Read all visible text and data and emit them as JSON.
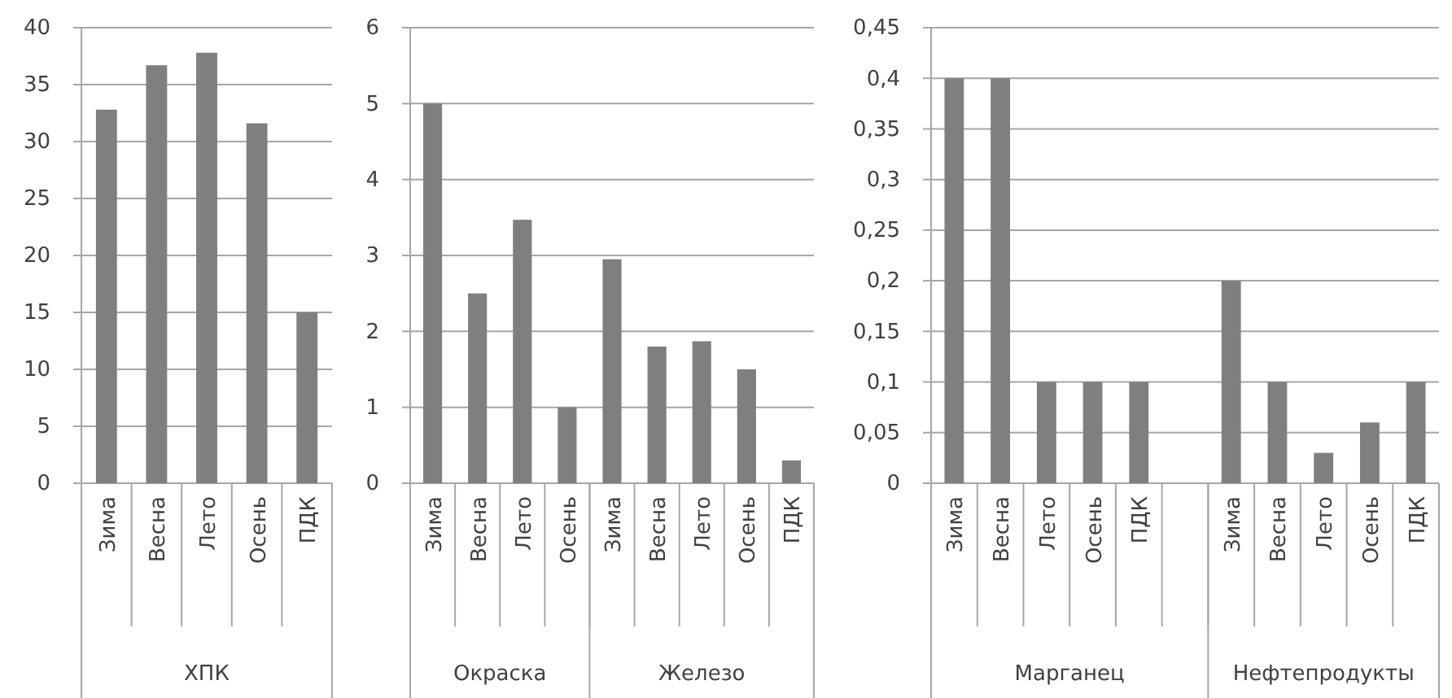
{
  "chart_data": [
    {
      "type": "bar",
      "categories": [
        "Зима",
        "Весна",
        "Лето",
        "Осень",
        "ПДК"
      ],
      "values": [
        32.8,
        36.7,
        37.8,
        31.6,
        15
      ],
      "color": "#7f7f7f",
      "annotations": [
        "ХПК"
      ],
      "ylim": [
        0,
        40
      ],
      "yticks": [
        0,
        5,
        10,
        15,
        20,
        25,
        30,
        35,
        40
      ],
      "grid": "y"
    },
    {
      "type": "bar",
      "categories": [
        "Зима",
        "Весна",
        "Лето",
        "Осень",
        "Зима",
        "Весна",
        "Лето",
        "Осень",
        "ПДК"
      ],
      "values": [
        5,
        2.5,
        3.47,
        1,
        2.95,
        1.8,
        1.87,
        1.5,
        0.3
      ],
      "color": "#7f7f7f",
      "annotations": [
        "Окраска",
        "Железо"
      ],
      "ylim": [
        0,
        6
      ],
      "yticks": [
        0,
        1,
        2,
        3,
        4,
        5,
        6
      ],
      "grid": "y"
    },
    {
      "type": "bar",
      "categories": [
        "Зима",
        "Весна",
        "Лето",
        "Осень",
        "ПДК",
        null,
        "Зима",
        "Весна",
        "Лето",
        "Осень",
        "ПДК"
      ],
      "values": [
        0.4,
        0.4,
        0.1,
        0.1,
        0.1,
        null,
        0.2,
        0.1,
        0.03,
        0.06,
        0.1
      ],
      "color": "#7f7f7f",
      "annotations": [
        "Марганец",
        "Нефтепродукты"
      ],
      "ylim": [
        0,
        0.45
      ],
      "yticks": [
        0,
        {
          "value": 0.05,
          "label": "0,05"
        },
        {
          "value": 0.1,
          "label": "0,1"
        },
        {
          "value": 0.15,
          "label": "0,15"
        },
        {
          "value": 0.2,
          "label": "0,2"
        },
        {
          "value": 0.25,
          "label": "0,25"
        },
        {
          "value": 0.3,
          "label": "0,3"
        },
        {
          "value": 0.35,
          "label": "0,35"
        },
        {
          "value": 0.4,
          "label": "0,4"
        },
        {
          "value": 0.45,
          "label": "0,45"
        }
      ],
      "grid": "y"
    }
  ]
}
